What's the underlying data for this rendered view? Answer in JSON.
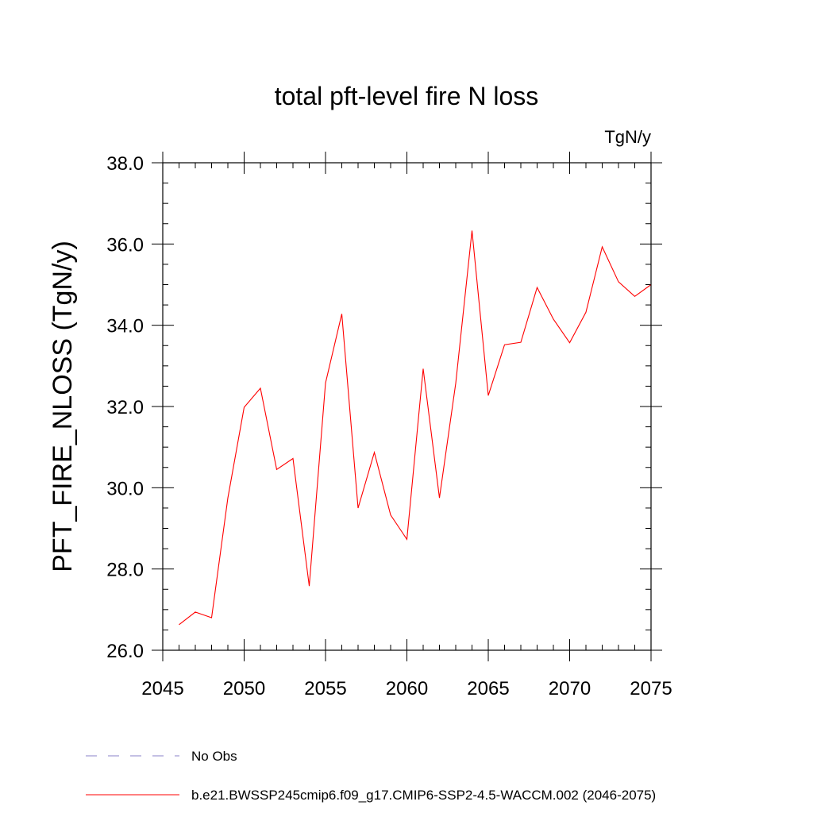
{
  "chart_data": {
    "type": "line",
    "title": "total pft-level fire N loss",
    "units_label": "TgN/y",
    "ylabel": "PFT_FIRE_NLOSS  (TgN/y)",
    "xlabel": "",
    "xlim": [
      2045,
      2075
    ],
    "ylim": [
      26.0,
      38.0
    ],
    "x_ticks": [
      2045,
      2050,
      2055,
      2060,
      2065,
      2070,
      2075
    ],
    "x_tick_labels": [
      "2045",
      "2050",
      "2055",
      "2060",
      "2065",
      "2070",
      "2075"
    ],
    "y_ticks": [
      26,
      28,
      30,
      32,
      34,
      36,
      38
    ],
    "y_tick_labels": [
      "26.0",
      "28.0",
      "30.0",
      "32.0",
      "34.0",
      "36.0",
      "38.0"
    ],
    "grid": false,
    "legend_position": "bottom",
    "series": [
      {
        "name": "b.e21.BWSSP245cmip6.f09_g17.CMIP6-SSP2-4.5-WACCM.002 (2046-2075)",
        "color": "#ff0000",
        "style": "solid",
        "x": [
          2046,
          2047,
          2048,
          2049,
          2050,
          2051,
          2052,
          2053,
          2054,
          2055,
          2056,
          2057,
          2058,
          2059,
          2060,
          2061,
          2062,
          2063,
          2064,
          2065,
          2066,
          2067,
          2068,
          2069,
          2070,
          2071,
          2072,
          2073,
          2074,
          2075
        ],
        "values": [
          26.63,
          26.94,
          26.8,
          29.75,
          31.98,
          32.45,
          30.45,
          30.72,
          27.58,
          32.58,
          34.28,
          29.5,
          30.87,
          29.33,
          28.73,
          32.93,
          29.75,
          32.57,
          36.33,
          32.27,
          33.52,
          33.58,
          34.93,
          34.15,
          33.57,
          34.32,
          35.93,
          35.07,
          34.71,
          35.0
        ]
      }
    ],
    "legend_entries": [
      {
        "label": "No Obs",
        "color": "#8a80c8",
        "style": "dashed"
      },
      {
        "label": "b.e21.BWSSP245cmip6.f09_g17.CMIP6-SSP2-4.5-WACCM.002 (2046-2075)",
        "color": "#ff0000",
        "style": "solid"
      }
    ]
  }
}
